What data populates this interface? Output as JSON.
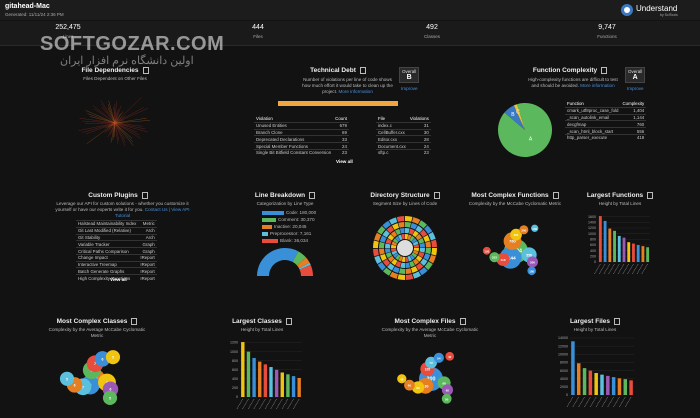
{
  "header": {
    "title": "gitahead-Mac",
    "generated": "Generated: 11/11/24 2:36 PM",
    "logo": "Understand",
    "logo_sub": "by SciTools"
  },
  "watermark": {
    "site": "SOFTGOZAR.COM",
    "tagline": "اولین دانشگاه نرم افزار ایران"
  },
  "stats": [
    {
      "value": "252,475",
      "label": "Lines"
    },
    {
      "value": "444",
      "label": "Files"
    },
    {
      "value": "492",
      "label": "Classes"
    },
    {
      "value": "9,747",
      "label": "Functions"
    }
  ],
  "file_dependencies": {
    "title": "File Dependencies",
    "subtitle": "Files Dependent on Other Files"
  },
  "technical_debt": {
    "title": "Technical Debt",
    "description": "Number of violations per line of code shows how much effort it would take to clean up the project.",
    "link": "More information",
    "overall_label": "Overall",
    "grade": "B",
    "improve": "Improve",
    "violations": {
      "headers": [
        "Violation",
        "Count"
      ],
      "rows": [
        [
          "Unused Entities",
          "679"
        ],
        [
          "Branch Clone",
          "69"
        ],
        [
          "Deprecated Declarations",
          "33"
        ],
        [
          "Special Member Functions",
          "24"
        ],
        [
          "Single Bit Bitfield Constant Conversion",
          "23"
        ]
      ]
    },
    "files": {
      "headers": [
        "File",
        "Violations"
      ],
      "rows": [
        [
          "index.c",
          "31"
        ],
        [
          "CellBuffer.cxx",
          "30"
        ],
        [
          "Editor.cxx",
          "28"
        ],
        [
          "Document.cxx",
          "24"
        ],
        [
          "sftp.c",
          "23"
        ]
      ]
    },
    "view_all": "View all"
  },
  "function_complexity": {
    "title": "Function Complexity",
    "description": "High-complexity functions are difficult to test and should be avoided.",
    "link": "More information",
    "overall_label": "Overall",
    "grade": "A",
    "improve": "Improve",
    "pie": {
      "labels": [
        "A",
        "B",
        "C"
      ],
      "values": [
        91,
        7,
        2
      ],
      "colors": [
        "#5cb85c",
        "#3a78c2",
        "#e8c33a"
      ]
    },
    "table": {
      "headers": [
        "Function",
        "Complexity"
      ],
      "rows": [
        [
          "cmark_utf8proc_case_fold",
          "1,404"
        ],
        [
          "_scan_autolink_email",
          "1,144"
        ],
        [
          "decgfmap",
          "760"
        ],
        [
          "_scan_html_block_start",
          "556"
        ],
        [
          "http_parser_execute",
          "418"
        ]
      ]
    }
  },
  "custom_plugins": {
    "title": "Custom Plugins",
    "description": "Leverage our API for custom solutions - whether you customize it yourself or have our experts write it for you.",
    "contact": "Contact Us",
    "separator": "|",
    "tutorial": "View API Tutorial",
    "rows": [
      [
        "Halstead Maintainability Index",
        "Metric"
      ],
      [
        "Git Last Modified (Relative)",
        "Arch"
      ],
      [
        "Git Stability",
        "Arch"
      ],
      [
        "Variable Tracker",
        "Graph"
      ],
      [
        "Critical Paths Comparison",
        "Graph"
      ],
      [
        "Change Impact",
        "IReport"
      ],
      [
        "Interactive Treemap",
        "IReport"
      ],
      [
        "Batch Generate Graphs",
        "IReport"
      ],
      [
        "High Complexity Functions",
        "IReport"
      ]
    ],
    "view_all": "View all"
  },
  "line_breakdown": {
    "title": "Line Breakdown",
    "subtitle": "Categorization by Line Type",
    "legend": [
      "Code: 180,000",
      "Comment: 30,370",
      "Inactive: 20,045",
      "Preprocessor: 7,161",
      "Blank: 36,034"
    ],
    "values": [
      180000,
      30370,
      20045,
      7161,
      36034
    ],
    "colors": [
      "#3a8fd9",
      "#5cb85c",
      "#e67e22",
      "#5bc0de",
      "#e74c3c"
    ]
  },
  "directory_structure": {
    "title": "Directory Structure",
    "subtitle": "Segment Size by Lines of Code"
  },
  "most_complex_functions": {
    "title": "Most Complex Functions",
    "subtitle": "Complexity by the McCabe Cyclomatic Metric",
    "values": [
      1404,
      1144,
      760,
      556,
      418,
      331,
      300,
      253,
      200,
      180,
      150,
      130
    ],
    "colors": [
      "#5cb85c",
      "#3a8fd9",
      "#e67e22",
      "#5bc0de",
      "#e74c3c",
      "#f1c40f",
      "#9b59b6",
      "#5cb85c",
      "#e67e22",
      "#3a8fd9",
      "#e74c3c",
      "#5bc0de"
    ]
  },
  "largest_functions": {
    "title": "Largest Functions",
    "subtitle": "Height by Total Lines",
    "ylim": [
      0,
      1800
    ],
    "yticks": [
      0,
      200,
      400,
      600,
      800,
      1000,
      1200,
      1400,
      1600
    ],
    "values": [
      1620,
      1450,
      1180,
      1100,
      920,
      860,
      700,
      650,
      600,
      560,
      520
    ],
    "colors": [
      "#e74c3c",
      "#3a8fd9",
      "#e67e22",
      "#5cb85c",
      "#5bc0de",
      "#9b59b6",
      "#f1c40f",
      "#e74c3c",
      "#3a8fd9",
      "#e67e22",
      "#5cb85c"
    ]
  },
  "most_complex_classes": {
    "title": "Most Complex Classes",
    "subtitle": "Complexity by the Average McCabe Cyclomatic Metric",
    "values": [
      10,
      9,
      8,
      8,
      7,
      7,
      6,
      6,
      6,
      5,
      5,
      5
    ],
    "colors": [
      "#e67e22",
      "#3a8fd9",
      "#5cb85c",
      "#f1c40f",
      "#5bc0de",
      "#e74c3c",
      "#9b59b6",
      "#e67e22",
      "#3a8fd9",
      "#5cb85c",
      "#5bc0de",
      "#f1c40f"
    ]
  },
  "largest_classes": {
    "title": "Largest Classes",
    "subtitle": "Height by Total Lines",
    "ylim": [
      0,
      1300
    ],
    "yticks": [
      0,
      200,
      400,
      600,
      800,
      1000,
      1200
    ],
    "values": [
      1210,
      1000,
      860,
      780,
      720,
      660,
      600,
      540,
      500,
      460,
      420
    ],
    "colors": [
      "#f1c40f",
      "#5cb85c",
      "#3a8fd9",
      "#e67e22",
      "#e74c3c",
      "#5bc0de",
      "#9b59b6",
      "#f1c40f",
      "#5cb85c",
      "#3a8fd9",
      "#e67e22"
    ]
  },
  "most_complex_files": {
    "title": "Most Complex Files",
    "subtitle": "Complexity by the Average McCabe Cyclomatic Metric",
    "values": [
      300,
      130,
      105,
      88,
      80,
      72,
      65,
      60,
      54,
      50,
      45,
      40
    ],
    "colors": [
      "#3a8fd9",
      "#e67e22",
      "#e74c3c",
      "#5cb85c",
      "#f1c40f",
      "#5bc0de",
      "#9b59b6",
      "#e67e22",
      "#3a8fd9",
      "#5cb85c",
      "#f1c40f",
      "#e74c3c"
    ]
  },
  "largest_files": {
    "title": "Largest Files",
    "subtitle": "Height by Total Lines",
    "ylim": [
      0,
      14500
    ],
    "yticks": [
      0,
      2000,
      4000,
      6000,
      8000,
      10000,
      12000,
      14000
    ],
    "values": [
      13200,
      7800,
      6600,
      6000,
      5400,
      5000,
      4700,
      4400,
      4100,
      3900,
      3600
    ],
    "colors": [
      "#3a8fd9",
      "#e67e22",
      "#5cb85c",
      "#e74c3c",
      "#f1c40f",
      "#5bc0de",
      "#9b59b6",
      "#3a8fd9",
      "#e67e22",
      "#5cb85c",
      "#e74c3c"
    ]
  }
}
